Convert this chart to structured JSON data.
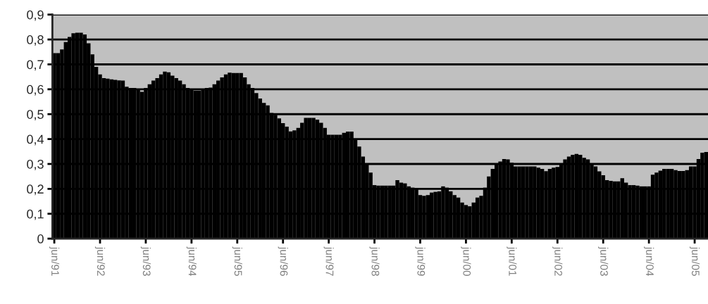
{
  "chart_data": {
    "type": "bar",
    "categories": [
      "jun/91",
      null,
      null,
      null,
      null,
      null,
      null,
      null,
      null,
      null,
      null,
      null,
      "jun/92",
      null,
      null,
      null,
      null,
      null,
      null,
      null,
      null,
      null,
      null,
      null,
      "jun/93",
      null,
      null,
      null,
      null,
      null,
      null,
      null,
      null,
      null,
      null,
      null,
      "jun/94",
      null,
      null,
      null,
      null,
      null,
      null,
      null,
      null,
      null,
      null,
      null,
      "jun/95",
      null,
      null,
      null,
      null,
      null,
      null,
      null,
      null,
      null,
      null,
      null,
      "jun/96",
      null,
      null,
      null,
      null,
      null,
      null,
      null,
      null,
      null,
      null,
      null,
      "jun/97",
      null,
      null,
      null,
      null,
      null,
      null,
      null,
      null,
      null,
      null,
      null,
      "jun/98",
      null,
      null,
      null,
      null,
      null,
      null,
      null,
      null,
      null,
      null,
      null,
      "jun/99",
      null,
      null,
      null,
      null,
      null,
      null,
      null,
      null,
      null,
      null,
      null,
      "jun/00",
      null,
      null,
      null,
      null,
      null,
      null,
      null,
      null,
      null,
      null,
      null,
      "jun/01",
      null,
      null,
      null,
      null,
      null,
      null,
      null,
      null,
      null,
      null,
      null,
      "jun/02",
      null,
      null,
      null,
      null,
      null,
      null,
      null,
      null,
      null,
      null,
      null,
      "jun/03",
      null,
      null,
      null,
      null,
      null,
      null,
      null,
      null,
      null,
      null,
      null,
      "jun/04",
      null,
      null,
      null,
      null,
      null,
      null,
      null,
      null,
      null,
      null,
      null,
      "jun/05",
      null,
      null,
      null
    ],
    "values": [
      0.745,
      0.745,
      0.76,
      0.79,
      0.81,
      0.825,
      0.827,
      0.827,
      0.82,
      0.785,
      0.74,
      0.69,
      0.66,
      0.645,
      0.643,
      0.64,
      0.638,
      0.636,
      0.635,
      0.61,
      0.605,
      0.605,
      0.6,
      0.59,
      0.605,
      0.62,
      0.635,
      0.645,
      0.66,
      0.671,
      0.668,
      0.655,
      0.645,
      0.635,
      0.62,
      0.605,
      0.6,
      0.595,
      0.595,
      0.6,
      0.605,
      0.607,
      0.62,
      0.635,
      0.648,
      0.66,
      0.667,
      0.665,
      0.665,
      0.665,
      0.648,
      0.62,
      0.605,
      0.585,
      0.563,
      0.545,
      0.535,
      0.505,
      0.497,
      0.483,
      0.464,
      0.45,
      0.431,
      0.435,
      0.445,
      0.465,
      0.485,
      0.485,
      0.485,
      0.478,
      0.465,
      0.445,
      0.417,
      0.417,
      0.417,
      0.417,
      0.425,
      0.43,
      0.43,
      0.4,
      0.37,
      0.33,
      0.3,
      0.265,
      0.215,
      0.213,
      0.213,
      0.213,
      0.213,
      0.213,
      0.235,
      0.225,
      0.222,
      0.21,
      0.205,
      0.2,
      0.175,
      0.172,
      0.175,
      0.185,
      0.188,
      0.19,
      0.21,
      0.205,
      0.19,
      0.175,
      0.165,
      0.145,
      0.135,
      0.13,
      0.145,
      0.165,
      0.172,
      0.205,
      0.25,
      0.28,
      0.3,
      0.31,
      0.32,
      0.318,
      0.305,
      0.29,
      0.29,
      0.29,
      0.29,
      0.29,
      0.29,
      0.285,
      0.28,
      0.271,
      0.28,
      0.285,
      0.288,
      0.3,
      0.318,
      0.33,
      0.337,
      0.34,
      0.337,
      0.325,
      0.318,
      0.3,
      0.29,
      0.27,
      0.255,
      0.235,
      0.232,
      0.23,
      0.23,
      0.243,
      0.225,
      0.215,
      0.215,
      0.213,
      0.21,
      0.21,
      0.21,
      0.257,
      0.265,
      0.273,
      0.28,
      0.28,
      0.28,
      0.275,
      0.272,
      0.272,
      0.275,
      0.29,
      0.29,
      0.32,
      0.345,
      0.348
    ],
    "color": "#000000",
    "ylim": [
      0,
      0.9
    ],
    "yticks": [
      {
        "value": 0,
        "label": "0"
      },
      {
        "value": 0.1,
        "label": "0,1"
      },
      {
        "value": 0.2,
        "label": "0,2"
      },
      {
        "value": 0.3,
        "label": "0,3"
      },
      {
        "value": 0.4,
        "label": "0,4"
      },
      {
        "value": 0.5,
        "label": "0,5"
      },
      {
        "value": 0.6,
        "label": "0,6"
      },
      {
        "value": 0.7,
        "label": "0,7"
      },
      {
        "value": 0.8,
        "label": "0,8"
      },
      {
        "value": 0.9,
        "label": "0,9"
      }
    ],
    "grid": "y",
    "legend": false
  }
}
